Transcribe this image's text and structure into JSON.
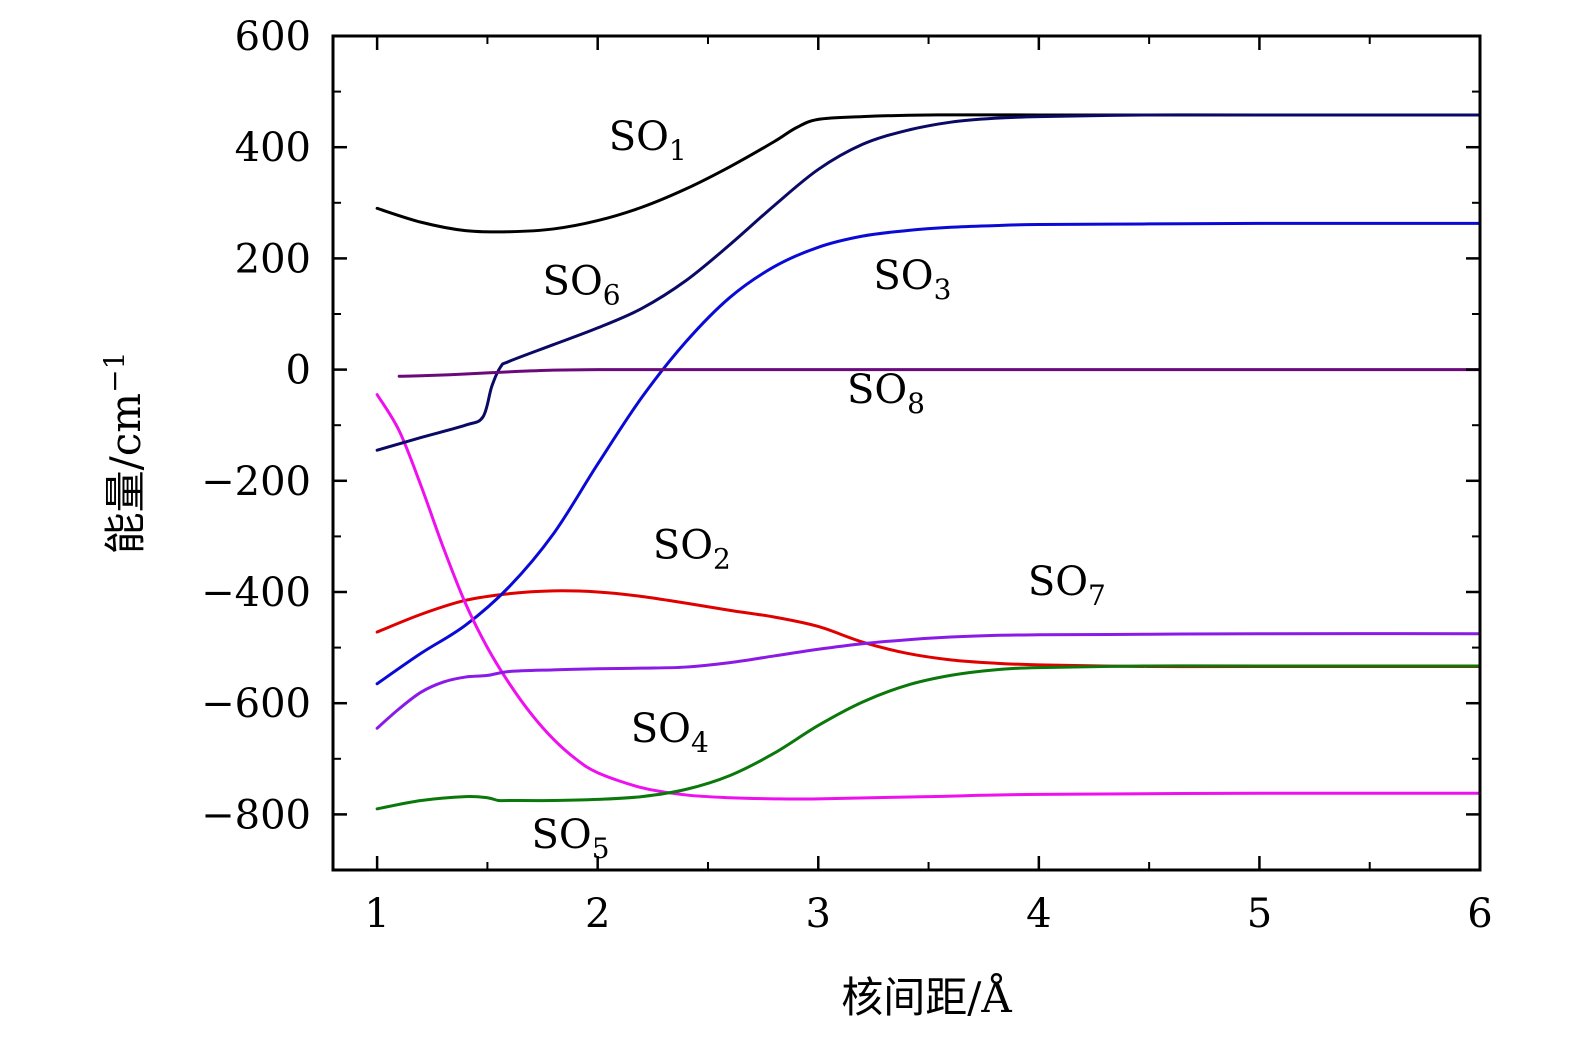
{
  "chart_data": {
    "type": "line",
    "title": "",
    "xlabel": "核间距/Å",
    "ylabel": "能量/cm",
    "ylabel_exp": "−1",
    "xlim": [
      0.8,
      6
    ],
    "ylim": [
      -900,
      600
    ],
    "x_ticks": [
      1,
      2,
      3,
      4,
      5,
      6
    ],
    "x_tick_labels": [
      "1",
      "2",
      "3",
      "4",
      "5",
      "6"
    ],
    "y_ticks": [
      600,
      400,
      200,
      0,
      -200,
      -400,
      -600,
      -800
    ],
    "y_tick_labels": [
      "600",
      "400",
      "200",
      "0",
      "−200",
      "−400",
      "−600",
      "−800"
    ],
    "grid": false,
    "legend": "none",
    "series": [
      {
        "name": "SO1",
        "label_text": "SO",
        "label_sub": "1",
        "color": "#000000",
        "x": [
          1.0,
          1.2,
          1.4,
          1.6,
          1.8,
          2.0,
          2.2,
          2.4,
          2.6,
          2.8,
          2.9,
          3.0,
          3.2,
          3.5,
          4.0,
          5.0,
          6.0
        ],
        "y": [
          290,
          265,
          250,
          248,
          253,
          268,
          292,
          325,
          365,
          410,
          435,
          450,
          455,
          458,
          458,
          458,
          458
        ],
        "label_pos": [
          2.05,
          395
        ]
      },
      {
        "name": "SO2",
        "label_text": "SO",
        "label_sub": "2",
        "color": "#e00000",
        "x": [
          1.0,
          1.2,
          1.4,
          1.6,
          1.8,
          2.0,
          2.2,
          2.4,
          2.6,
          2.8,
          3.0,
          3.2,
          3.4,
          3.6,
          3.8,
          4.0,
          4.5,
          5.0,
          6.0
        ],
        "y": [
          -472,
          -440,
          -415,
          -403,
          -398,
          -400,
          -408,
          -420,
          -433,
          -445,
          -462,
          -490,
          -510,
          -522,
          -528,
          -531,
          -534,
          -534,
          -534
        ],
        "label_pos": [
          2.25,
          -340
        ]
      },
      {
        "name": "SO3",
        "label_text": "SO",
        "label_sub": "3",
        "color": "#0a0ad6",
        "x": [
          1.0,
          1.2,
          1.4,
          1.6,
          1.8,
          2.0,
          2.2,
          2.4,
          2.6,
          2.8,
          3.0,
          3.2,
          3.4,
          3.6,
          3.8,
          4.0,
          4.5,
          5.0,
          6.0
        ],
        "y": [
          -565,
          -510,
          -460,
          -390,
          -295,
          -170,
          -50,
          50,
          130,
          185,
          220,
          240,
          250,
          256,
          259,
          261,
          262,
          263,
          263
        ],
        "label_pos": [
          3.25,
          145
        ]
      },
      {
        "name": "SO4",
        "label_text": "SO",
        "label_sub": "4",
        "color": "#ee10ee",
        "x": [
          1.0,
          1.1,
          1.2,
          1.3,
          1.4,
          1.5,
          1.6,
          1.7,
          1.8,
          1.9,
          2.0,
          2.2,
          2.4,
          2.6,
          2.8,
          3.0,
          3.5,
          4.0,
          5.0,
          6.0
        ],
        "y": [
          -45,
          -110,
          -210,
          -320,
          -420,
          -500,
          -565,
          -620,
          -665,
          -700,
          -725,
          -752,
          -765,
          -770,
          -772,
          -772,
          -768,
          -764,
          -762,
          -762
        ],
        "label_pos": [
          2.15,
          -670
        ]
      },
      {
        "name": "SO5",
        "label_text": "SO",
        "label_sub": "5",
        "color": "#0a780a",
        "x": [
          1.0,
          1.2,
          1.4,
          1.5,
          1.55,
          1.6,
          1.8,
          2.0,
          2.2,
          2.4,
          2.6,
          2.8,
          3.0,
          3.2,
          3.4,
          3.6,
          3.8,
          4.0,
          4.5,
          5.0,
          6.0
        ],
        "y": [
          -790,
          -775,
          -768,
          -770,
          -775,
          -775,
          -775,
          -773,
          -768,
          -755,
          -730,
          -690,
          -640,
          -598,
          -568,
          -550,
          -540,
          -536,
          -533,
          -533,
          -533
        ],
        "label_pos": [
          1.7,
          -860
        ]
      },
      {
        "name": "SO6",
        "label_text": "SO",
        "label_sub": "6",
        "color": "#0a0a66",
        "x": [
          1.0,
          1.2,
          1.4,
          1.48,
          1.52,
          1.56,
          1.6,
          1.8,
          2.0,
          2.2,
          2.4,
          2.6,
          2.8,
          3.0,
          3.2,
          3.4,
          3.6,
          3.8,
          4.0,
          4.5,
          5.0,
          6.0
        ],
        "y": [
          -145,
          -122,
          -100,
          -85,
          -30,
          5,
          15,
          45,
          75,
          110,
          160,
          225,
          295,
          360,
          405,
          430,
          445,
          452,
          455,
          458,
          458,
          458
        ],
        "label_pos": [
          1.75,
          135
        ]
      },
      {
        "name": "SO7",
        "label_text": "SO",
        "label_sub": "7",
        "color": "#8a1ae6",
        "x": [
          1.0,
          1.1,
          1.2,
          1.3,
          1.4,
          1.5,
          1.6,
          1.8,
          2.0,
          2.2,
          2.4,
          2.6,
          2.8,
          3.0,
          3.2,
          3.4,
          3.6,
          3.8,
          4.0,
          4.5,
          5.0,
          6.0
        ],
        "y": [
          -645,
          -610,
          -580,
          -562,
          -553,
          -550,
          -543,
          -540,
          -538,
          -537,
          -535,
          -527,
          -515,
          -503,
          -493,
          -486,
          -481,
          -478,
          -477,
          -476,
          -475,
          -475
        ],
        "label_pos": [
          3.95,
          -405
        ]
      },
      {
        "name": "SO8",
        "label_text": "SO",
        "label_sub": "8",
        "color": "#6a0a7a",
        "x": [
          1.1,
          1.2,
          1.4,
          1.6,
          1.8,
          2.0,
          2.5,
          3.0,
          4.0,
          5.0,
          6.0
        ],
        "y": [
          -12,
          -11,
          -8,
          -4,
          -1,
          0,
          0,
          0,
          0,
          0,
          0
        ],
        "label_pos": [
          3.13,
          -60
        ]
      }
    ]
  }
}
